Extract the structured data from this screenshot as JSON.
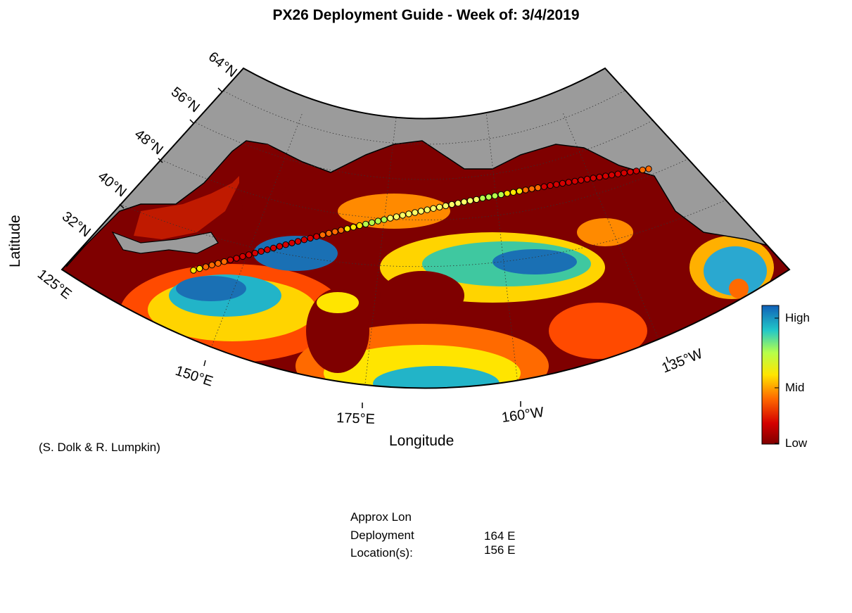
{
  "title": "PX26 Deployment Guide - Week of: 3/4/2019",
  "xlabel": "Longitude",
  "ylabel": "Latitude",
  "credit": "(S. Dolk & R. Lumpkin)",
  "lat_labels": [
    "64°N",
    "56°N",
    "48°N",
    "40°N",
    "32°N"
  ],
  "lon_labels": [
    "125°E",
    "150°E",
    "175°E",
    "160°W",
    "135°W"
  ],
  "colorbar": {
    "high": "High",
    "mid": "Mid",
    "low": "Low"
  },
  "info": {
    "line1": "Approx Lon",
    "line2": "Deployment",
    "line3": "Location(s):",
    "lon_values": [
      "164 E",
      "156 E"
    ]
  },
  "colors": {
    "land": "#9b9b9b",
    "ocean_low": "#7f0000",
    "high": "#1e78c8"
  }
}
